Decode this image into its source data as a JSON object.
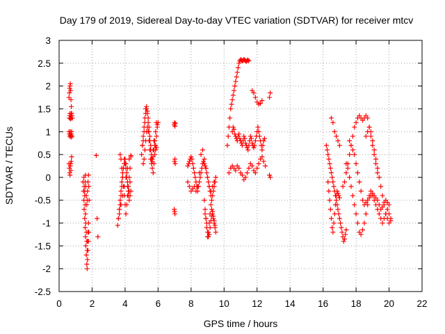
{
  "chart_data": {
    "type": "scatter",
    "title": "Day 179 of 2019, Sidereal Day-to-day VTEC variation (SDTVAR) for receiver mtcv",
    "xlabel": "GPS time / hours",
    "ylabel": "SDTVAR / TECUs",
    "xlim": [
      0,
      22
    ],
    "ylim": [
      -2.5,
      3
    ],
    "x_ticks": [
      0,
      2,
      4,
      6,
      8,
      10,
      12,
      14,
      16,
      18,
      20,
      22
    ],
    "x_tick_labels": [
      "0",
      "2",
      "4",
      "6",
      "8",
      "10",
      "12",
      "14",
      "16",
      "18",
      "20",
      "22"
    ],
    "y_ticks": [
      -2.5,
      -2,
      -1.5,
      -1,
      -0.5,
      0,
      0.5,
      1,
      1.5,
      2,
      2.5,
      3
    ],
    "y_tick_labels": [
      "-2.5",
      "-2",
      "-1.5",
      "-1",
      "-0.5",
      "0",
      "0.5",
      "1",
      "1.5",
      "2",
      "2.5",
      "3"
    ],
    "grid": true,
    "marker": "plus",
    "color": "#ff0000",
    "series": [
      {
        "name": "SDTVAR",
        "x": [
          0.6,
          0.62,
          0.64,
          0.66,
          0.68,
          0.7,
          0.72,
          0.74,
          0.76,
          0.78,
          0.8,
          0.6,
          0.62,
          0.64,
          0.66,
          0.68,
          0.7,
          0.72,
          0.74,
          0.76,
          0.78,
          0.6,
          0.62,
          0.64,
          0.66,
          0.68,
          0.7,
          0.72,
          0.74,
          0.76,
          0.62,
          0.64,
          0.66,
          0.68,
          0.7,
          0.72,
          0.74,
          0.76,
          1.45,
          1.48,
          1.5,
          1.52,
          1.55,
          1.58,
          1.6,
          1.62,
          1.65,
          1.68,
          1.7,
          1.72,
          1.75,
          1.78,
          1.8,
          1.5,
          1.52,
          1.55,
          1.58,
          1.6,
          1.62,
          1.65,
          1.68,
          1.7,
          1.72,
          1.75,
          1.78,
          1.55,
          1.58,
          1.6,
          1.62,
          1.65,
          1.68,
          1.7,
          1.72,
          1.75,
          1.78,
          1.8,
          1.82,
          2.25,
          2.3,
          2.35,
          3.55,
          3.6,
          3.65,
          3.7,
          3.75,
          3.8,
          3.85,
          3.9,
          3.95,
          4.0,
          4.05,
          4.1,
          4.15,
          4.2,
          4.25,
          4.3,
          4.35,
          3.6,
          3.65,
          3.7,
          3.75,
          3.8,
          3.85,
          3.9,
          3.95,
          4.0,
          4.05,
          4.1,
          4.15,
          4.2,
          4.25,
          4.3,
          3.7,
          3.75,
          3.8,
          3.85,
          3.9,
          3.95,
          4.0,
          4.05,
          4.1,
          4.15,
          4.2,
          4.25,
          4.3,
          4.35,
          3.65,
          3.75,
          3.85,
          3.95,
          4.05,
          4.15,
          4.25,
          4.35,
          5.0,
          5.05,
          5.1,
          5.15,
          5.2,
          5.25,
          5.3,
          5.35,
          5.4,
          5.45,
          5.5,
          5.55,
          5.6,
          5.65,
          5.7,
          5.75,
          5.8,
          5.85,
          5.9,
          5.95,
          6.0,
          5.05,
          5.1,
          5.15,
          5.2,
          5.25,
          5.3,
          5.35,
          5.4,
          5.45,
          5.5,
          5.55,
          5.6,
          5.65,
          5.7,
          5.75,
          5.8,
          5.85,
          5.9,
          5.95,
          5.1,
          5.15,
          5.2,
          5.25,
          5.3,
          5.35,
          5.4,
          5.45,
          5.5,
          5.55,
          5.6,
          5.65,
          5.7,
          5.75,
          5.8,
          5.85,
          5.9,
          6.98,
          7.0,
          7.02,
          7.04,
          7.0,
          7.02,
          7.04,
          6.98,
          7.0,
          7.02,
          7.8,
          7.85,
          7.9,
          7.95,
          8.0,
          8.05,
          8.1,
          8.15,
          8.2,
          8.25,
          8.3,
          8.35,
          8.4,
          8.45,
          8.5,
          8.55,
          8.6,
          8.65,
          8.7,
          8.75,
          8.8,
          8.85,
          8.9,
          8.95,
          9.0,
          9.05,
          9.1,
          9.15,
          9.2,
          9.25,
          9.3,
          9.35,
          9.4,
          9.45,
          9.5,
          7.8,
          7.9,
          8.0,
          8.1,
          8.2,
          8.3,
          8.4,
          8.5,
          8.6,
          8.7,
          8.8,
          8.9,
          9.0,
          9.1,
          9.2,
          9.3,
          9.4,
          8.8,
          8.85,
          8.9,
          8.95,
          9.0,
          9.05,
          9.1,
          9.15,
          9.2,
          9.25,
          9.3,
          9.35,
          9.4,
          9.45,
          9.5,
          8.85,
          8.9,
          8.95,
          9.0,
          9.05,
          9.1,
          9.15,
          9.2,
          9.25,
          9.3,
          9.35,
          9.4,
          9.45,
          10.2,
          10.25,
          10.3,
          10.35,
          10.4,
          10.45,
          10.5,
          10.55,
          10.6,
          10.65,
          10.7,
          10.75,
          10.8,
          10.85,
          10.9,
          10.95,
          11.0,
          11.05,
          11.1,
          11.15,
          11.2,
          11.25,
          11.3,
          11.35,
          11.4,
          11.45,
          11.5,
          10.5,
          10.55,
          10.6,
          10.65,
          10.7,
          10.75,
          10.8,
          10.85,
          10.9,
          10.95,
          11.0,
          11.05,
          11.1,
          11.15,
          11.2,
          11.25,
          11.3,
          11.35,
          11.4,
          11.45,
          11.5,
          11.55,
          11.6,
          11.65,
          11.7,
          11.75,
          11.8,
          11.85,
          11.9,
          11.95,
          12.0,
          12.05,
          12.1,
          12.15,
          12.2,
          12.25,
          12.3,
          12.35,
          12.4,
          12.45,
          10.3,
          10.4,
          10.5,
          10.6,
          10.7,
          10.8,
          10.9,
          11.0,
          11.1,
          11.2,
          11.3,
          11.4,
          11.5,
          11.6,
          11.7,
          11.8,
          11.9,
          12.0,
          12.1,
          12.2,
          12.3,
          12.4,
          12.5,
          11.7,
          11.8,
          11.9,
          12.0,
          12.1,
          12.2,
          12.3,
          12.75,
          12.8,
          12.75,
          12.8,
          16.2,
          16.25,
          16.3,
          16.35,
          16.4,
          16.45,
          16.5,
          16.55,
          16.6,
          16.65,
          16.7,
          16.75,
          16.8,
          16.85,
          16.9,
          16.95,
          17.0,
          17.05,
          17.1,
          17.15,
          17.2,
          17.25,
          17.3,
          17.35,
          17.4,
          16.3,
          16.35,
          16.4,
          16.45,
          16.5,
          16.55,
          16.6,
          16.65,
          16.7,
          16.75,
          16.8,
          16.85,
          16.9,
          16.95,
          17.0,
          16.5,
          16.6,
          16.7,
          16.8,
          16.9,
          17.0,
          17.2,
          17.3,
          17.4,
          17.5,
          17.6,
          17.7,
          17.8,
          17.9,
          18.0,
          18.1,
          18.2,
          18.3,
          18.4,
          18.5,
          18.6,
          18.7,
          18.8,
          18.9,
          19.0,
          19.1,
          19.2,
          19.3,
          17.4,
          17.5,
          17.6,
          17.7,
          17.8,
          17.9,
          18.0,
          18.1,
          18.2,
          18.3,
          18.4,
          18.5,
          18.6,
          18.7,
          18.8,
          18.9,
          19.0,
          19.1,
          19.2,
          19.3,
          19.4,
          19.5,
          19.6,
          19.7,
          19.8,
          19.9,
          20.0,
          20.1,
          17.6,
          17.7,
          17.8,
          17.9,
          18.0,
          18.1,
          18.2,
          18.3,
          18.4,
          18.5,
          18.6,
          18.7,
          18.8,
          18.9,
          19.0,
          19.1,
          19.2,
          19.3,
          19.4,
          19.5,
          19.6,
          19.7,
          19.8,
          19.9,
          20.0,
          18.6,
          18.7,
          18.8,
          18.9,
          19.0,
          19.1,
          19.2,
          19.3,
          19.4,
          19.5,
          19.6,
          19.7,
          19.8,
          19.9,
          20.0,
          20.1
        ],
        "y": [
          1.75,
          1.85,
          1.95,
          2.0,
          2.05,
          1.9,
          1.7,
          1.55,
          1.4,
          1.35,
          1.3,
          1.0,
          0.95,
          0.9,
          0.95,
          1.0,
          0.92,
          0.88,
          0.95,
          1.0,
          0.9,
          0.3,
          0.2,
          0.1,
          0.05,
          0.25,
          0.3,
          0.15,
          0.35,
          0.45,
          1.3,
          1.35,
          1.4,
          1.3,
          1.28,
          1.35,
          1.4,
          1.3,
          -0.1,
          -0.3,
          -0.5,
          -0.7,
          -0.9,
          -1.1,
          -1.3,
          -1.5,
          -1.7,
          -1.9,
          -2.0,
          -1.8,
          -1.6,
          -1.4,
          -1.2,
          0.0,
          -0.2,
          -0.4,
          -0.6,
          -0.8,
          -1.0,
          -1.2,
          -1.4,
          -1.6,
          -1.4,
          -1.2,
          -1.0,
          -0.3,
          -0.1,
          0.05,
          -0.2,
          -0.4,
          -0.6,
          -0.5,
          -0.3,
          -0.1,
          0.05,
          -0.2,
          -0.5,
          0.48,
          -0.9,
          -1.3,
          -1.05,
          -0.9,
          -0.7,
          -0.5,
          -0.3,
          -0.1,
          0.1,
          0.2,
          0.3,
          0.4,
          0.3,
          0.1,
          -0.1,
          -0.3,
          -0.5,
          -0.4,
          -0.3,
          -0.9,
          -0.7,
          -0.6,
          -0.4,
          -0.2,
          0.0,
          0.2,
          0.4,
          0.3,
          0.2,
          0.0,
          -0.2,
          -0.4,
          -0.3,
          -0.1,
          0.5,
          0.4,
          0.2,
          0.0,
          -0.2,
          -0.4,
          -0.6,
          -0.8,
          -0.6,
          -0.4,
          -0.2,
          0.0,
          0.2,
          0.45,
          -0.8,
          -0.6,
          -0.4,
          -0.2,
          0.0,
          0.2,
          0.4,
          0.48,
          0.5,
          0.7,
          0.9,
          1.1,
          1.3,
          1.5,
          1.55,
          1.4,
          1.2,
          1.0,
          0.8,
          0.6,
          0.4,
          0.2,
          0.1,
          0.3,
          0.5,
          0.7,
          0.9,
          1.1,
          1.2,
          0.7,
          0.8,
          1.0,
          1.2,
          1.4,
          1.5,
          1.45,
          1.3,
          1.1,
          0.9,
          0.7,
          0.5,
          0.35,
          0.45,
          0.6,
          0.8,
          1.0,
          1.2,
          1.15,
          0.3,
          0.4,
          0.6,
          0.8,
          1.0,
          1.1,
          1.0,
          0.8,
          0.6,
          0.4,
          0.3,
          0.4,
          0.6,
          0.8,
          0.7,
          0.6,
          0.65,
          1.15,
          1.2,
          1.12,
          1.18,
          0.35,
          0.4,
          0.3,
          -0.7,
          -0.75,
          -0.8,
          0.25,
          0.3,
          0.35,
          0.4,
          0.45,
          0.4,
          0.3,
          0.2,
          0.1,
          0.0,
          -0.1,
          -0.2,
          -0.3,
          -0.2,
          -0.1,
          0.0,
          0.1,
          0.2,
          0.3,
          0.35,
          0.3,
          0.25,
          0.2,
          0.1,
          0.0,
          -0.1,
          -0.2,
          -0.3,
          -0.4,
          -0.5,
          -0.4,
          -0.3,
          -0.2,
          -0.1,
          0.0,
          -0.1,
          -0.2,
          -0.3,
          -0.25,
          -0.2,
          -0.3,
          -0.2,
          0.1,
          0.5,
          0.6,
          0.4,
          0.2,
          0.0,
          -0.2,
          -0.3,
          -0.2,
          -0.1,
          -0.5,
          -0.7,
          -0.9,
          -1.1,
          -1.3,
          -1.2,
          -1.0,
          -0.8,
          -0.6,
          -0.7,
          -0.8,
          -0.9,
          -1.0,
          -1.1,
          -1.2,
          -0.8,
          -0.9,
          -1.0,
          -1.2,
          -1.3,
          -1.25,
          -1.1,
          -0.95,
          -0.85,
          -0.75,
          -0.85,
          -0.95,
          -1.05,
          0.7,
          0.9,
          1.1,
          1.3,
          1.5,
          1.6,
          1.7,
          1.8,
          1.9,
          2.0,
          2.1,
          2.2,
          2.3,
          2.4,
          2.5,
          2.55,
          2.58,
          2.57,
          2.55,
          2.56,
          2.58,
          2.57,
          2.55,
          2.54,
          2.56,
          2.57,
          2.55,
          1.0,
          1.1,
          1.05,
          0.95,
          0.9,
          0.85,
          0.8,
          0.9,
          0.95,
          0.85,
          0.8,
          0.75,
          0.7,
          0.8,
          0.9,
          0.85,
          0.75,
          0.7,
          0.65,
          0.6,
          0.7,
          0.8,
          0.9,
          0.85,
          0.75,
          0.7,
          0.65,
          0.7,
          0.8,
          0.9,
          1.0,
          1.1,
          1.0,
          0.9,
          0.8,
          0.7,
          0.6,
          0.7,
          0.8,
          0.85,
          0.1,
          0.2,
          0.25,
          0.2,
          0.15,
          0.25,
          0.2,
          0.1,
          0.05,
          -0.05,
          0.0,
          0.1,
          0.2,
          0.3,
          0.25,
          0.15,
          0.1,
          0.2,
          0.3,
          0.4,
          0.45,
          0.35,
          0.25,
          1.9,
          1.85,
          1.75,
          1.65,
          1.6,
          1.62,
          1.68,
          1.75,
          1.85,
          0.05,
          0.0,
          0.7,
          0.6,
          0.5,
          0.4,
          0.3,
          0.2,
          0.1,
          0.0,
          -0.1,
          -0.2,
          -0.3,
          -0.4,
          -0.5,
          -0.6,
          -0.7,
          -0.8,
          -0.9,
          -1.0,
          -1.1,
          -1.2,
          -1.3,
          -1.4,
          -1.35,
          -1.25,
          -1.15,
          -0.1,
          -0.3,
          -0.5,
          -0.7,
          -0.9,
          -1.1,
          -1.2,
          -1.0,
          -0.8,
          -0.6,
          -0.4,
          -0.3,
          -0.35,
          -0.4,
          -0.45,
          1.3,
          1.2,
          1.0,
          0.9,
          0.8,
          0.7,
          -0.2,
          -0.1,
          0.1,
          0.3,
          0.5,
          0.7,
          0.9,
          1.1,
          1.2,
          1.3,
          1.35,
          1.3,
          1.25,
          1.3,
          1.35,
          1.3,
          1.1,
          0.9,
          0.7,
          0.5,
          0.3,
          0.1,
          0.3,
          0.2,
          0.0,
          -0.2,
          -0.4,
          -0.6,
          -0.8,
          -1.0,
          -1.2,
          -1.25,
          -1.15,
          -1.0,
          -0.8,
          -0.6,
          -0.4,
          -0.3,
          -0.4,
          -0.5,
          -0.6,
          -0.7,
          -0.8,
          -0.9,
          -1.0,
          -0.9,
          -0.8,
          -0.7,
          -0.8,
          -0.9,
          0.8,
          0.7,
          0.6,
          0.5,
          0.3,
          0.1,
          -0.1,
          -0.3,
          -0.5,
          -0.6,
          -0.55,
          -0.5,
          -0.45,
          -0.4,
          -0.35,
          -0.4,
          -0.45,
          -0.5,
          -0.6,
          -0.7,
          -0.65,
          -0.55,
          -0.5,
          -0.55,
          -0.6,
          0.9,
          1.0,
          1.1,
          1.0,
          0.8,
          0.6,
          0.4,
          0.2,
          0.0,
          -0.2,
          -0.4,
          -0.6,
          -0.8,
          -0.9,
          -1.0,
          -0.95
        ]
      }
    ]
  }
}
